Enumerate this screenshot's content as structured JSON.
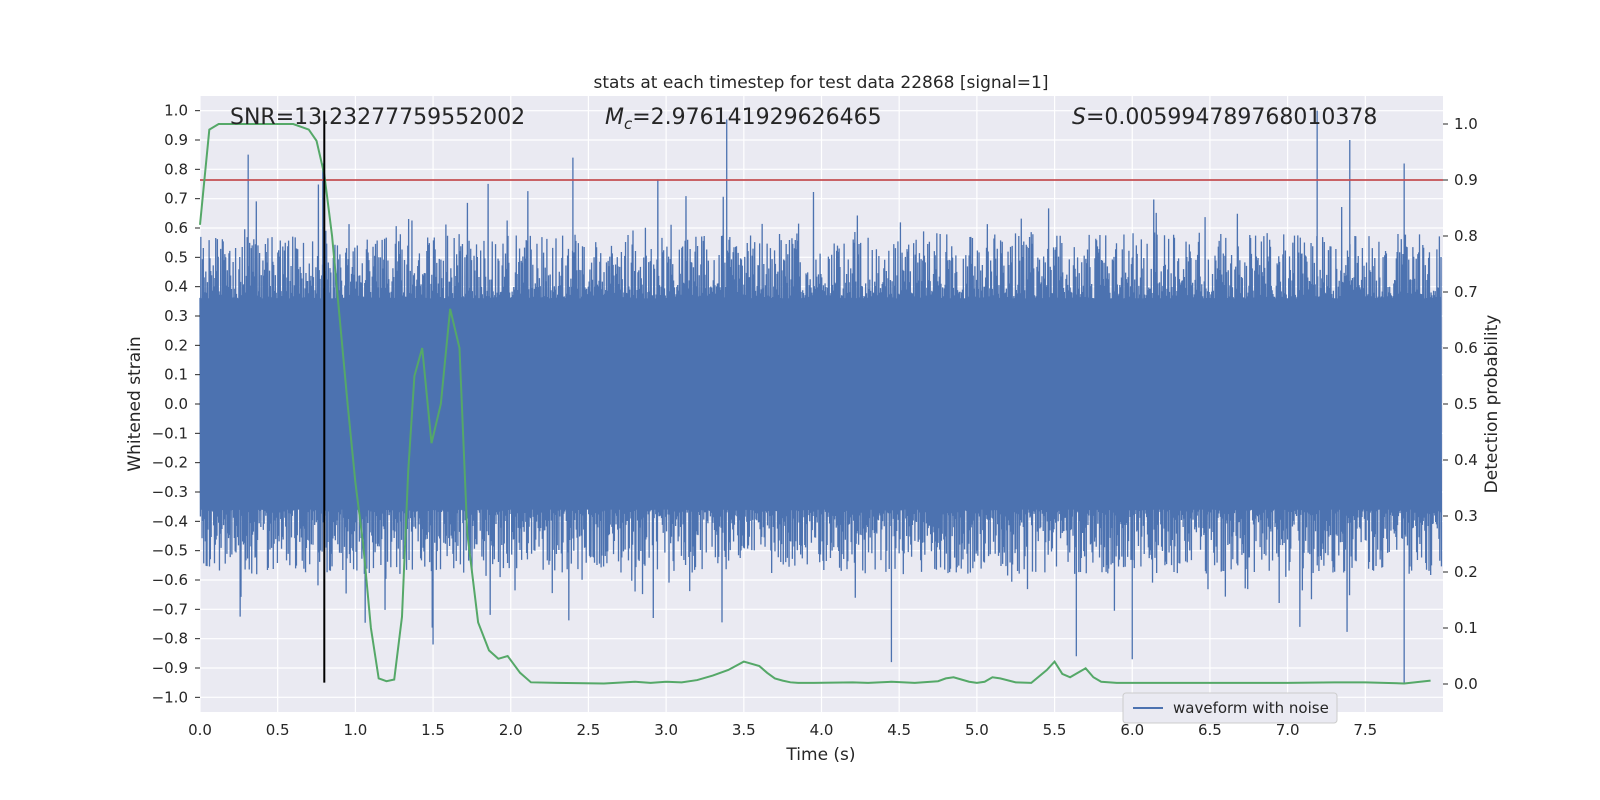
{
  "chart_data": {
    "type": "line",
    "title": "stats at each timestep for test data 22868 [signal=1]",
    "xlabel": "Time (s)",
    "ylabel": "Whitened strain",
    "y2label": "Detection probability",
    "xlim": [
      0.0,
      8.0
    ],
    "ylim": [
      -1.05,
      1.05
    ],
    "y2lim": [
      -0.05,
      1.05
    ],
    "x_ticks": [
      0.0,
      0.5,
      1.0,
      1.5,
      2.0,
      2.5,
      3.0,
      3.5,
      4.0,
      4.5,
      5.0,
      5.5,
      6.0,
      6.5,
      7.0,
      7.5
    ],
    "y_ticks": [
      1.0,
      0.9,
      0.8,
      0.7,
      0.6,
      0.5,
      0.4,
      0.3,
      0.2,
      0.1,
      0.0,
      -0.1,
      -0.2,
      -0.3,
      -0.4,
      -0.5,
      -0.6,
      -0.7,
      -0.8,
      -0.9,
      -1.0
    ],
    "y2_ticks": [
      1.0,
      0.9,
      0.8,
      0.7,
      0.6,
      0.5,
      0.4,
      0.3,
      0.2,
      0.1,
      0.0
    ],
    "annotations": {
      "snr": "SNR=13.23277759552002",
      "mc_symbol": "M",
      "mc_subscript": "c",
      "mc_value": "=2.976141929626465",
      "s_symbol": "S",
      "s_value": "=0.005994789768010378"
    },
    "threshold": 0.9,
    "marker_time": 0.8,
    "grid": true,
    "legend": {
      "position": "lower-right",
      "entries": [
        "waveform with noise"
      ]
    },
    "series": [
      {
        "name": "waveform with noise",
        "axis": "left",
        "style": "dense noise trace",
        "approx_envelope": {
          "typical_upper": 0.42,
          "typical_lower": -0.45,
          "max": 1.0,
          "min": -0.95
        },
        "notable_peaks": [
          {
            "x": 0.31,
            "y": 0.85
          },
          {
            "x": 0.79,
            "y": 0.82
          },
          {
            "x": 2.4,
            "y": 0.84
          },
          {
            "x": 3.39,
            "y": 0.97
          },
          {
            "x": 7.19,
            "y": 1.0
          },
          {
            "x": 7.4,
            "y": 0.9
          },
          {
            "x": 7.75,
            "y": 0.82
          },
          {
            "x": 4.45,
            "y": -0.88
          },
          {
            "x": 5.64,
            "y": -0.86
          },
          {
            "x": 7.75,
            "y": -0.95
          },
          {
            "x": 1.5,
            "y": -0.82
          },
          {
            "x": 6.0,
            "y": -0.87
          }
        ]
      },
      {
        "axis": "right",
        "style": "detection probability",
        "x": [
          0.0,
          0.06,
          0.12,
          0.2,
          0.3,
          0.4,
          0.5,
          0.6,
          0.7,
          0.75,
          0.8,
          0.85,
          0.9,
          0.95,
          1.0,
          1.05,
          1.1,
          1.15,
          1.2,
          1.25,
          1.3,
          1.34,
          1.38,
          1.43,
          1.49,
          1.55,
          1.61,
          1.67,
          1.72,
          1.79,
          1.86,
          1.92,
          1.98,
          2.06,
          2.13,
          2.3,
          2.6,
          2.8,
          2.9,
          3.0,
          3.1,
          3.2,
          3.3,
          3.4,
          3.5,
          3.6,
          3.65,
          3.7,
          3.75,
          3.8,
          3.85,
          3.95,
          4.2,
          4.3,
          4.45,
          4.6,
          4.75,
          4.8,
          4.85,
          4.9,
          4.95,
          5.0,
          5.05,
          5.1,
          5.15,
          5.25,
          5.35,
          5.45,
          5.5,
          5.55,
          5.6,
          5.65,
          5.7,
          5.75,
          5.8,
          5.9,
          6.1,
          6.5,
          7.0,
          7.3,
          7.5,
          7.75,
          7.92
        ],
        "values": [
          0.82,
          0.99,
          1.0,
          1.0,
          1.0,
          1.0,
          1.0,
          1.0,
          0.99,
          0.97,
          0.91,
          0.8,
          0.65,
          0.5,
          0.36,
          0.25,
          0.1,
          0.01,
          0.005,
          0.008,
          0.12,
          0.38,
          0.55,
          0.6,
          0.43,
          0.5,
          0.67,
          0.6,
          0.27,
          0.11,
          0.06,
          0.045,
          0.05,
          0.02,
          0.003,
          0.002,
          0.001,
          0.004,
          0.002,
          0.004,
          0.003,
          0.007,
          0.015,
          0.025,
          0.04,
          0.032,
          0.02,
          0.01,
          0.006,
          0.003,
          0.002,
          0.002,
          0.003,
          0.002,
          0.004,
          0.002,
          0.005,
          0.01,
          0.012,
          0.008,
          0.004,
          0.002,
          0.004,
          0.012,
          0.01,
          0.003,
          0.002,
          0.025,
          0.04,
          0.018,
          0.012,
          0.02,
          0.028,
          0.012,
          0.004,
          0.002,
          0.002,
          0.002,
          0.002,
          0.003,
          0.003,
          0.001,
          0.006
        ]
      }
    ]
  }
}
